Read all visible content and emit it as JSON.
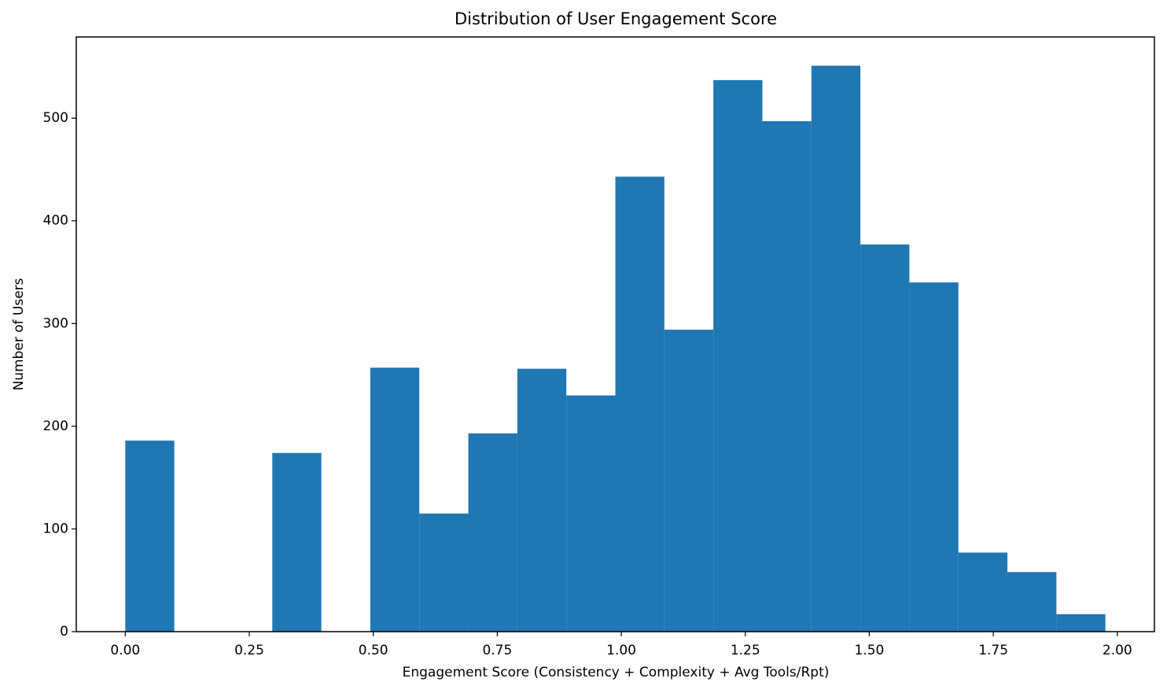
{
  "chart_data": {
    "type": "histogram",
    "title": "Distribution of User Engagement Score",
    "x_label": "Engagement Score (Consistency + Complexity + Avg Tools/Rpt)",
    "y_label": "Number of Users",
    "bins": [
      0,
      0.0988,
      0.1976,
      0.2964,
      0.3952,
      0.494,
      0.5928,
      0.6916,
      0.7904,
      0.8892,
      0.988,
      1.0868,
      1.1856,
      1.2844,
      1.3832,
      1.482,
      1.5808,
      1.6796,
      1.7784,
      1.8772,
      1.976
    ],
    "values": [
      186,
      0,
      0,
      174,
      0,
      257,
      115,
      193,
      256,
      230,
      443,
      294,
      537,
      497,
      551,
      377,
      340,
      77,
      58,
      17
    ],
    "color": "#1f77b4",
    "xlim": [
      -0.0988,
      2.0748
    ],
    "ylim": [
      0,
      579
    ],
    "xticks": [
      {
        "value": 0,
        "label": "0.00"
      },
      {
        "value": 0.25,
        "label": "0.25"
      },
      {
        "value": 0.5,
        "label": "0.50"
      },
      {
        "value": 0.75,
        "label": "0.75"
      },
      {
        "value": 1,
        "label": "1.00"
      },
      {
        "value": 1.25,
        "label": "1.25"
      },
      {
        "value": 1.5,
        "label": "1.50"
      },
      {
        "value": 1.75,
        "label": "1.75"
      },
      {
        "value": 2,
        "label": "2.00"
      }
    ],
    "yticks": [
      0,
      100,
      200,
      300,
      400,
      500
    ]
  }
}
